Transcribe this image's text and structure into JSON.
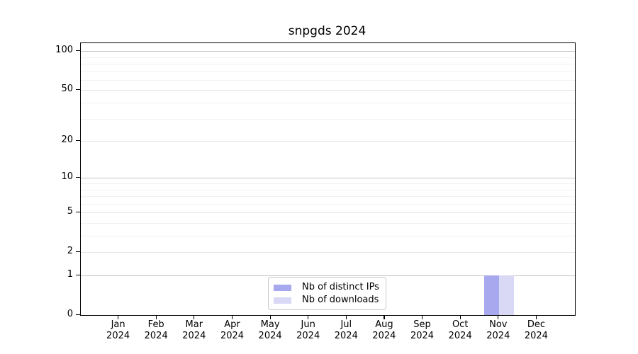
{
  "chart_data": {
    "type": "bar",
    "title": "snpgds 2024",
    "categories": [
      "Jan 2024",
      "Feb 2024",
      "Mar 2024",
      "Apr 2024",
      "May 2024",
      "Jun 2024",
      "Jul 2024",
      "Aug 2024",
      "Sep 2024",
      "Oct 2024",
      "Nov 2024",
      "Dec 2024"
    ],
    "series": [
      {
        "name": "Nb of distinct IPs",
        "color": "#a8a8ee",
        "values": [
          0,
          0,
          0,
          0,
          0,
          0,
          0,
          0,
          0,
          0,
          1,
          0
        ]
      },
      {
        "name": "Nb of downloads",
        "color": "#d9d9f6",
        "values": [
          0,
          0,
          0,
          0,
          0,
          0,
          0,
          0,
          0,
          0,
          1,
          0
        ]
      }
    ],
    "xlabel": "",
    "ylabel": "",
    "ylim": [
      0,
      114
    ],
    "y_scale": "log1p",
    "y_ticks_labeled": [
      0,
      1,
      2,
      5,
      10,
      20,
      50,
      100
    ],
    "y_gridlines_major": [
      1,
      10,
      100
    ],
    "y_gridlines_mid": [
      2,
      5,
      20,
      50
    ],
    "y_gridlines_minor": [
      3,
      4,
      6,
      7,
      8,
      9,
      30,
      40,
      60,
      70,
      80,
      90
    ],
    "grid": "horizontal",
    "legend_position": "lower center"
  }
}
